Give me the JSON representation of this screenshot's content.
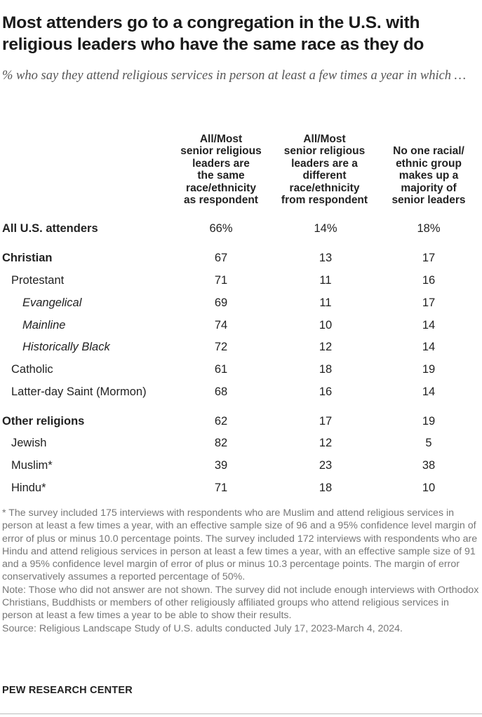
{
  "title": "Most attenders go to a congregation in the U.S. with religious leaders who have the same race as they do",
  "subtitle": "% who say they attend religious services in person at least a few times a year in which …",
  "columns": [
    [
      "All/Most",
      "senior religious",
      "leaders are",
      "the same",
      "race/ethnicity",
      "as respondent"
    ],
    [
      "All/Most",
      "senior religious",
      "leaders are a",
      "different",
      "race/ethnicity",
      "from respondent"
    ],
    [
      "No one racial/",
      "ethnic group",
      "makes up a",
      "majority of",
      "senior leaders"
    ]
  ],
  "rows": [
    {
      "label": "All U.S. attenders",
      "v1": "66%",
      "v2": "14%",
      "v3": "18%"
    },
    {
      "label": "Christian",
      "v1": "67",
      "v2": "13",
      "v3": "17"
    },
    {
      "label": "Protestant",
      "v1": "71",
      "v2": "11",
      "v3": "16"
    },
    {
      "label": "Evangelical",
      "v1": "69",
      "v2": "11",
      "v3": "17"
    },
    {
      "label": "Mainline",
      "v1": "74",
      "v2": "10",
      "v3": "14"
    },
    {
      "label": "Historically Black",
      "v1": "72",
      "v2": "12",
      "v3": "14"
    },
    {
      "label": "Catholic",
      "v1": "61",
      "v2": "18",
      "v3": "19"
    },
    {
      "label": "Latter-day Saint (Mormon)",
      "v1": "68",
      "v2": "16",
      "v3": "14"
    },
    {
      "label": "Other religions",
      "v1": "62",
      "v2": "17",
      "v3": "19"
    },
    {
      "label": "Jewish",
      "v1": "82",
      "v2": "12",
      "v3": "5"
    },
    {
      "label": "Muslim*",
      "v1": "39",
      "v2": "23",
      "v3": "38"
    },
    {
      "label": "Hindu*",
      "v1": "71",
      "v2": "18",
      "v3": "10"
    }
  ],
  "footnote": "* The survey included 175 interviews with respondents who are Muslim and attend religious services in person at least a few times a year, with an effective sample size of 96 and a 95% confidence level margin of error of plus or minus 10.0 percentage points. The survey included 172 interviews with respondents who are Hindu and attend religious services in person at least a few times a year, with an effective sample size of 91 and a 95% confidence level margin of error of plus or minus 10.3 percentage points. The margin of error conservatively assumes a reported percentage of 50%.",
  "note": "Note: Those who did not answer are not shown. The survey did not include enough interviews with Orthodox Christians, Buddhists or members of other religiously affiliated groups who attend religious services in person at least a few times a year to be able to show their results.",
  "source": "Source: Religious Landscape Study of U.S. adults conducted July 17, 2023-March 4, 2024.",
  "brand": "PEW RESEARCH CENTER"
}
